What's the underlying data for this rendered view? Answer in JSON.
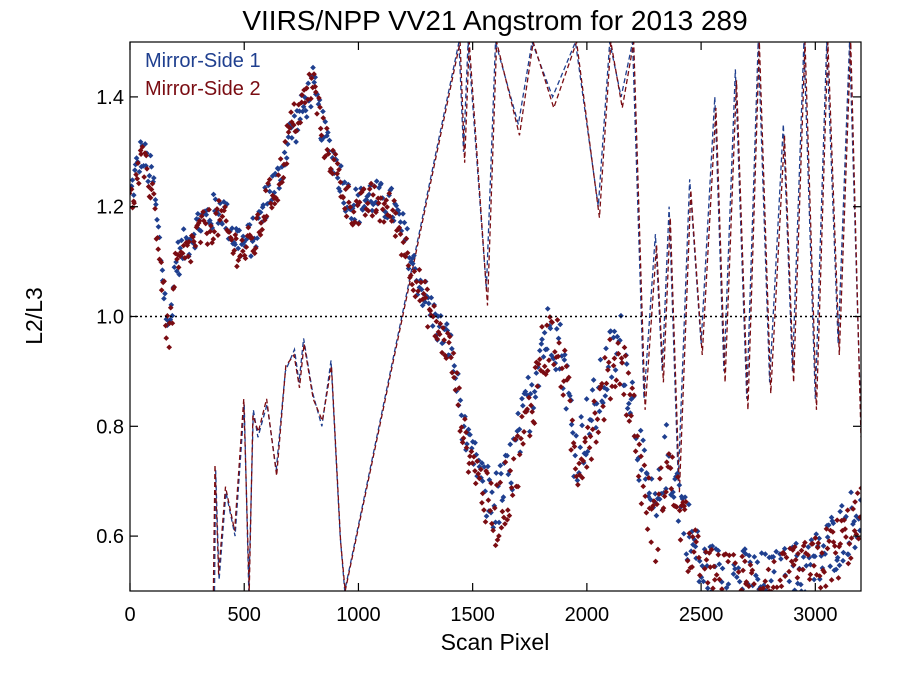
{
  "chart_data": {
    "type": "scatter",
    "title": "VIIRS/NPP VV21 Angstrom for 2013 289",
    "xlabel": "Scan Pixel",
    "ylabel": "L2/L3",
    "xlim": [
      0,
      3200
    ],
    "ylim": [
      0.5,
      1.5
    ],
    "x_ticks": [
      0,
      500,
      1000,
      1500,
      2000,
      2500,
      3000
    ],
    "x_tick_labels": [
      "0",
      "500",
      "1000",
      "1500",
      "2000",
      "2500",
      "3000"
    ],
    "y_ticks": [
      0.6,
      0.8,
      1.0,
      1.2,
      1.4
    ],
    "y_tick_labels": [
      "0.6",
      "0.8",
      "1.0",
      "1.2",
      "1.4"
    ],
    "reference_line": {
      "y": 1.0,
      "style": "dotted"
    },
    "legend": {
      "placement": "top-left",
      "entries": [
        "Mirror-Side 1",
        "Mirror-Side 2"
      ]
    },
    "series": [
      {
        "name": "Mirror-Side 1",
        "color": "#1f3f8f",
        "points_trend": [
          [
            0,
            1.22
          ],
          [
            50,
            1.3
          ],
          [
            100,
            1.25
          ],
          [
            150,
            1.05
          ],
          [
            170,
            0.97
          ],
          [
            200,
            1.1
          ],
          [
            300,
            1.17
          ],
          [
            400,
            1.2
          ],
          [
            450,
            1.15
          ],
          [
            500,
            1.13
          ],
          [
            550,
            1.15
          ],
          [
            600,
            1.22
          ],
          [
            650,
            1.25
          ],
          [
            700,
            1.33
          ],
          [
            750,
            1.37
          ],
          [
            800,
            1.42
          ],
          [
            850,
            1.33
          ],
          [
            900,
            1.28
          ],
          [
            950,
            1.22
          ],
          [
            1000,
            1.2
          ],
          [
            1050,
            1.22
          ],
          [
            1100,
            1.21
          ],
          [
            1150,
            1.2
          ],
          [
            1200,
            1.15
          ],
          [
            1250,
            1.08
          ],
          [
            1300,
            1.03
          ],
          [
            1350,
            0.98
          ],
          [
            1400,
            0.95
          ],
          [
            1430,
            0.88
          ],
          [
            1450,
            0.82
          ],
          [
            1480,
            0.76
          ],
          [
            1520,
            0.73
          ],
          [
            1560,
            0.68
          ],
          [
            1600,
            0.66
          ],
          [
            1650,
            0.7
          ],
          [
            1700,
            0.77
          ],
          [
            1750,
            0.85
          ],
          [
            1800,
            0.95
          ],
          [
            1850,
            0.98
          ],
          [
            1900,
            0.92
          ],
          [
            1950,
            0.75
          ],
          [
            2000,
            0.8
          ],
          [
            2050,
            0.85
          ],
          [
            2100,
            0.92
          ],
          [
            2150,
            0.95
          ],
          [
            2200,
            0.85
          ],
          [
            2250,
            0.7
          ],
          [
            2300,
            0.63
          ],
          [
            2350,
            0.75
          ],
          [
            2400,
            0.68
          ],
          [
            2450,
            0.6
          ],
          [
            2500,
            0.54
          ],
          [
            2600,
            0.52
          ],
          [
            2700,
            0.52
          ],
          [
            2800,
            0.51
          ],
          [
            3000,
            0.55
          ],
          [
            3100,
            0.6
          ],
          [
            3200,
            0.65
          ]
        ]
      },
      {
        "name": "Mirror-Side 2",
        "color": "#7a0c12",
        "points_trend": [
          [
            0,
            1.2
          ],
          [
            50,
            1.28
          ],
          [
            100,
            1.23
          ],
          [
            150,
            1.03
          ],
          [
            170,
            0.95
          ],
          [
            200,
            1.08
          ],
          [
            300,
            1.15
          ],
          [
            400,
            1.18
          ],
          [
            450,
            1.13
          ],
          [
            500,
            1.12
          ],
          [
            550,
            1.14
          ],
          [
            600,
            1.21
          ],
          [
            650,
            1.24
          ],
          [
            700,
            1.34
          ],
          [
            750,
            1.38
          ],
          [
            800,
            1.43
          ],
          [
            850,
            1.32
          ],
          [
            900,
            1.27
          ],
          [
            950,
            1.21
          ],
          [
            1000,
            1.19
          ],
          [
            1050,
            1.21
          ],
          [
            1100,
            1.2
          ],
          [
            1150,
            1.19
          ],
          [
            1200,
            1.13
          ],
          [
            1250,
            1.07
          ],
          [
            1300,
            1.02
          ],
          [
            1350,
            0.97
          ],
          [
            1400,
            0.94
          ],
          [
            1430,
            0.87
          ],
          [
            1450,
            0.81
          ],
          [
            1480,
            0.75
          ],
          [
            1520,
            0.72
          ],
          [
            1560,
            0.66
          ],
          [
            1600,
            0.64
          ],
          [
            1650,
            0.68
          ],
          [
            1700,
            0.75
          ],
          [
            1750,
            0.82
          ],
          [
            1800,
            0.93
          ],
          [
            1850,
            0.96
          ],
          [
            1900,
            0.9
          ],
          [
            1950,
            0.73
          ],
          [
            2000,
            0.78
          ],
          [
            2050,
            0.83
          ],
          [
            2100,
            0.9
          ],
          [
            2150,
            0.93
          ],
          [
            2200,
            0.83
          ],
          [
            2250,
            0.68
          ],
          [
            2300,
            0.61
          ],
          [
            2350,
            0.73
          ],
          [
            2400,
            0.66
          ],
          [
            2450,
            0.58
          ],
          [
            2500,
            0.53
          ],
          [
            2600,
            0.51
          ],
          [
            2700,
            0.51
          ],
          [
            2800,
            0.5
          ],
          [
            3000,
            0.54
          ],
          [
            3100,
            0.58
          ],
          [
            3200,
            0.63
          ]
        ]
      }
    ],
    "dashed_traces": [
      {
        "name": "Mirror-Side 1",
        "color": "#1f3f8f",
        "points": [
          [
            370,
            0.5
          ],
          [
            375,
            0.72
          ],
          [
            390,
            0.52
          ],
          [
            420,
            0.68
          ],
          [
            460,
            0.6
          ],
          [
            500,
            0.84
          ],
          [
            520,
            0.5
          ],
          [
            540,
            0.83
          ],
          [
            560,
            0.78
          ],
          [
            600,
            0.84
          ],
          [
            640,
            0.72
          ],
          [
            680,
            0.9
          ],
          [
            720,
            0.94
          ],
          [
            740,
            0.88
          ],
          [
            760,
            0.96
          ],
          [
            800,
            0.86
          ],
          [
            840,
            0.8
          ],
          [
            880,
            0.92
          ],
          [
            920,
            0.6
          ],
          [
            940,
            0.5
          ],
          [
            1440,
            1.5
          ],
          [
            1460,
            1.3
          ],
          [
            1480,
            1.5
          ],
          [
            1560,
            1.05
          ],
          [
            1600,
            1.5
          ],
          [
            1700,
            1.35
          ],
          [
            1760,
            1.5
          ],
          [
            1850,
            1.4
          ],
          [
            1950,
            1.5
          ],
          [
            2050,
            1.2
          ],
          [
            2100,
            1.5
          ],
          [
            2150,
            1.4
          ],
          [
            2200,
            1.5
          ],
          [
            2250,
            0.85
          ],
          [
            2300,
            1.15
          ],
          [
            2330,
            0.9
          ],
          [
            2360,
            1.2
          ],
          [
            2400,
            0.7
          ],
          [
            2450,
            1.25
          ],
          [
            2500,
            0.95
          ],
          [
            2560,
            1.4
          ],
          [
            2600,
            0.9
          ],
          [
            2650,
            1.45
          ],
          [
            2700,
            0.85
          ],
          [
            2750,
            1.5
          ],
          [
            2800,
            0.88
          ],
          [
            2860,
            1.35
          ],
          [
            2900,
            0.9
          ],
          [
            2950,
            1.5
          ],
          [
            3000,
            0.85
          ],
          [
            3050,
            1.5
          ],
          [
            3100,
            0.95
          ],
          [
            3150,
            1.5
          ],
          [
            3200,
            0.8
          ]
        ]
      },
      {
        "name": "Mirror-Side 2",
        "color": "#7a0c12",
        "points": [
          [
            365,
            0.5
          ],
          [
            372,
            0.73
          ],
          [
            388,
            0.53
          ],
          [
            418,
            0.69
          ],
          [
            458,
            0.61
          ],
          [
            498,
            0.85
          ],
          [
            522,
            0.5
          ],
          [
            538,
            0.82
          ],
          [
            562,
            0.79
          ],
          [
            598,
            0.85
          ],
          [
            642,
            0.71
          ],
          [
            682,
            0.91
          ],
          [
            718,
            0.93
          ],
          [
            742,
            0.87
          ],
          [
            762,
            0.95
          ],
          [
            802,
            0.85
          ],
          [
            842,
            0.81
          ],
          [
            882,
            0.91
          ],
          [
            922,
            0.59
          ],
          [
            942,
            0.5
          ],
          [
            1445,
            1.5
          ],
          [
            1465,
            1.28
          ],
          [
            1485,
            1.5
          ],
          [
            1565,
            1.02
          ],
          [
            1605,
            1.5
          ],
          [
            1705,
            1.33
          ],
          [
            1765,
            1.5
          ],
          [
            1855,
            1.38
          ],
          [
            1955,
            1.5
          ],
          [
            2055,
            1.18
          ],
          [
            2105,
            1.5
          ],
          [
            2155,
            1.38
          ],
          [
            2205,
            1.5
          ],
          [
            2255,
            0.83
          ],
          [
            2305,
            1.13
          ],
          [
            2335,
            0.88
          ],
          [
            2365,
            1.18
          ],
          [
            2405,
            0.68
          ],
          [
            2455,
            1.23
          ],
          [
            2505,
            0.93
          ],
          [
            2565,
            1.38
          ],
          [
            2605,
            0.88
          ],
          [
            2655,
            1.43
          ],
          [
            2705,
            0.83
          ],
          [
            2755,
            1.5
          ],
          [
            2805,
            0.86
          ],
          [
            2865,
            1.33
          ],
          [
            2905,
            0.88
          ],
          [
            2955,
            1.5
          ],
          [
            3005,
            0.83
          ],
          [
            3055,
            1.5
          ],
          [
            3105,
            0.93
          ],
          [
            3155,
            1.5
          ],
          [
            3200,
            0.78
          ]
        ]
      }
    ]
  }
}
